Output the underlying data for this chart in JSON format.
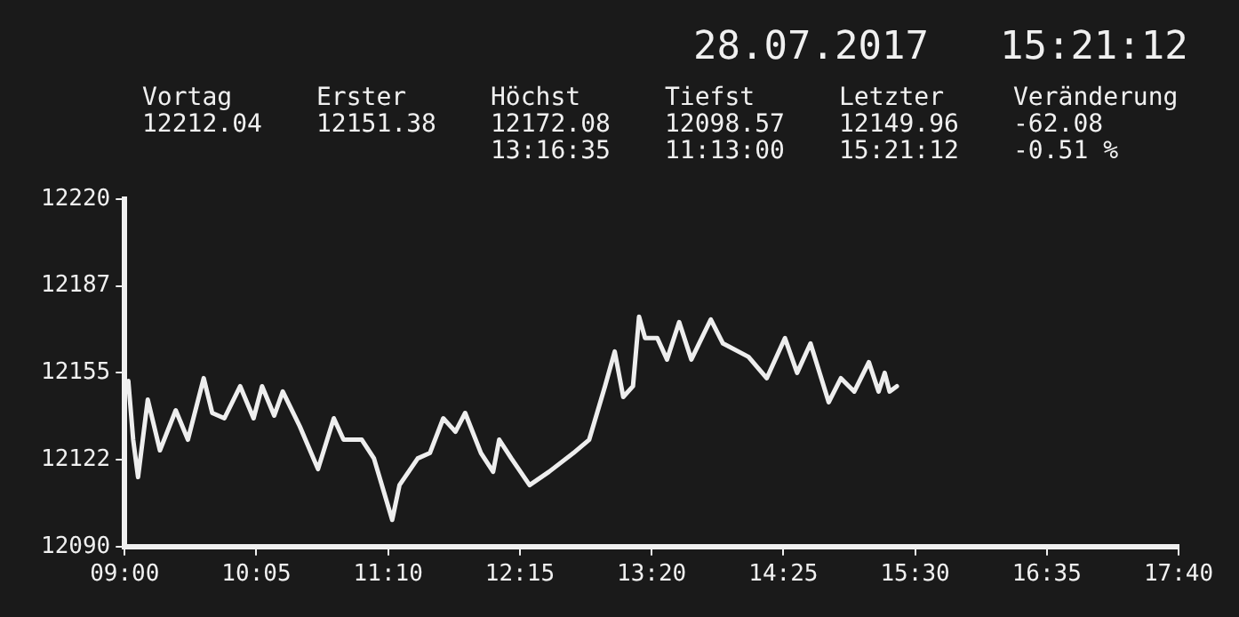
{
  "chart_data": {
    "type": "line",
    "title": "28.07.2017",
    "subtitle": "15:21:12",
    "annotations": [
      "Vortag\n12212.04",
      "Erster\n12151.38",
      "Höchst\n12172.08\n13:16:35",
      "Tiefst\n12098.57\n11:13:00",
      "Letzter\n12149.96\n15:21:12",
      "Veränderung\n-62.08\n-0.51 %"
    ],
    "series": [
      {
        "color": "#eeeeee",
        "x": [
          9.03,
          9.07,
          9.11,
          9.19,
          9.29,
          9.42,
          9.52,
          9.65,
          9.72,
          9.82,
          9.95,
          10.06,
          10.13,
          10.23,
          10.3,
          10.44,
          10.59,
          10.72,
          10.8,
          10.95,
          11.05,
          11.2,
          11.26,
          11.41,
          11.51,
          11.62,
          11.72,
          11.8,
          11.93,
          12.03,
          12.08,
          12.18,
          12.33,
          12.49,
          12.69,
          12.82,
          12.95,
          13.03,
          13.1,
          13.18,
          13.23,
          13.28,
          13.38,
          13.46,
          13.56,
          13.66,
          13.82,
          13.92,
          14.13,
          14.28,
          14.43,
          14.53,
          14.64,
          14.79,
          14.89,
          15.0,
          15.12,
          15.2,
          15.25,
          15.29,
          15.35
        ],
        "values": [
          12152,
          12130,
          12116,
          12145,
          12126,
          12141,
          12130,
          12153,
          12140,
          12138,
          12150,
          12138,
          12150,
          12139,
          12148,
          12135,
          12119,
          12138,
          12130,
          12130,
          12123,
          12100,
          12113,
          12123,
          12125,
          12138,
          12133,
          12140,
          12125,
          12118,
          12130,
          12123,
          12113,
          12118,
          12125,
          12130,
          12150,
          12163,
          12146,
          12150,
          12176,
          12168,
          12168,
          12160,
          12174,
          12160,
          12175,
          12166,
          12161,
          12153,
          12168,
          12155,
          12166,
          12144,
          12153,
          12148,
          12159,
          12148,
          12155,
          12148,
          12150
        ]
      }
    ],
    "xlim": [
      9,
      17.6667
    ],
    "xticks": [
      {
        "value": 9,
        "label": "09:00"
      },
      {
        "value": 10.0833,
        "label": "10:05"
      },
      {
        "value": 11.1667,
        "label": "11:10"
      },
      {
        "value": 12.25,
        "label": "12:15"
      },
      {
        "value": 13.3333,
        "label": "13:20"
      },
      {
        "value": 14.4167,
        "label": "14:25"
      },
      {
        "value": 15.5,
        "label": "15:30"
      },
      {
        "value": 16.5833,
        "label": "16:35"
      },
      {
        "value": 17.6667,
        "label": "17:40"
      }
    ],
    "ylim": [
      12090,
      12220
    ],
    "yticks": [
      {
        "value": 12090,
        "label": "12090"
      },
      {
        "value": 12122.5,
        "label": "12122"
      },
      {
        "value": 12155,
        "label": "12155"
      },
      {
        "value": 12187.5,
        "label": "12187"
      },
      {
        "value": 12220,
        "label": "12220"
      }
    ],
    "grid": false,
    "legend": false,
    "marker": "none",
    "line_style": "solid"
  }
}
